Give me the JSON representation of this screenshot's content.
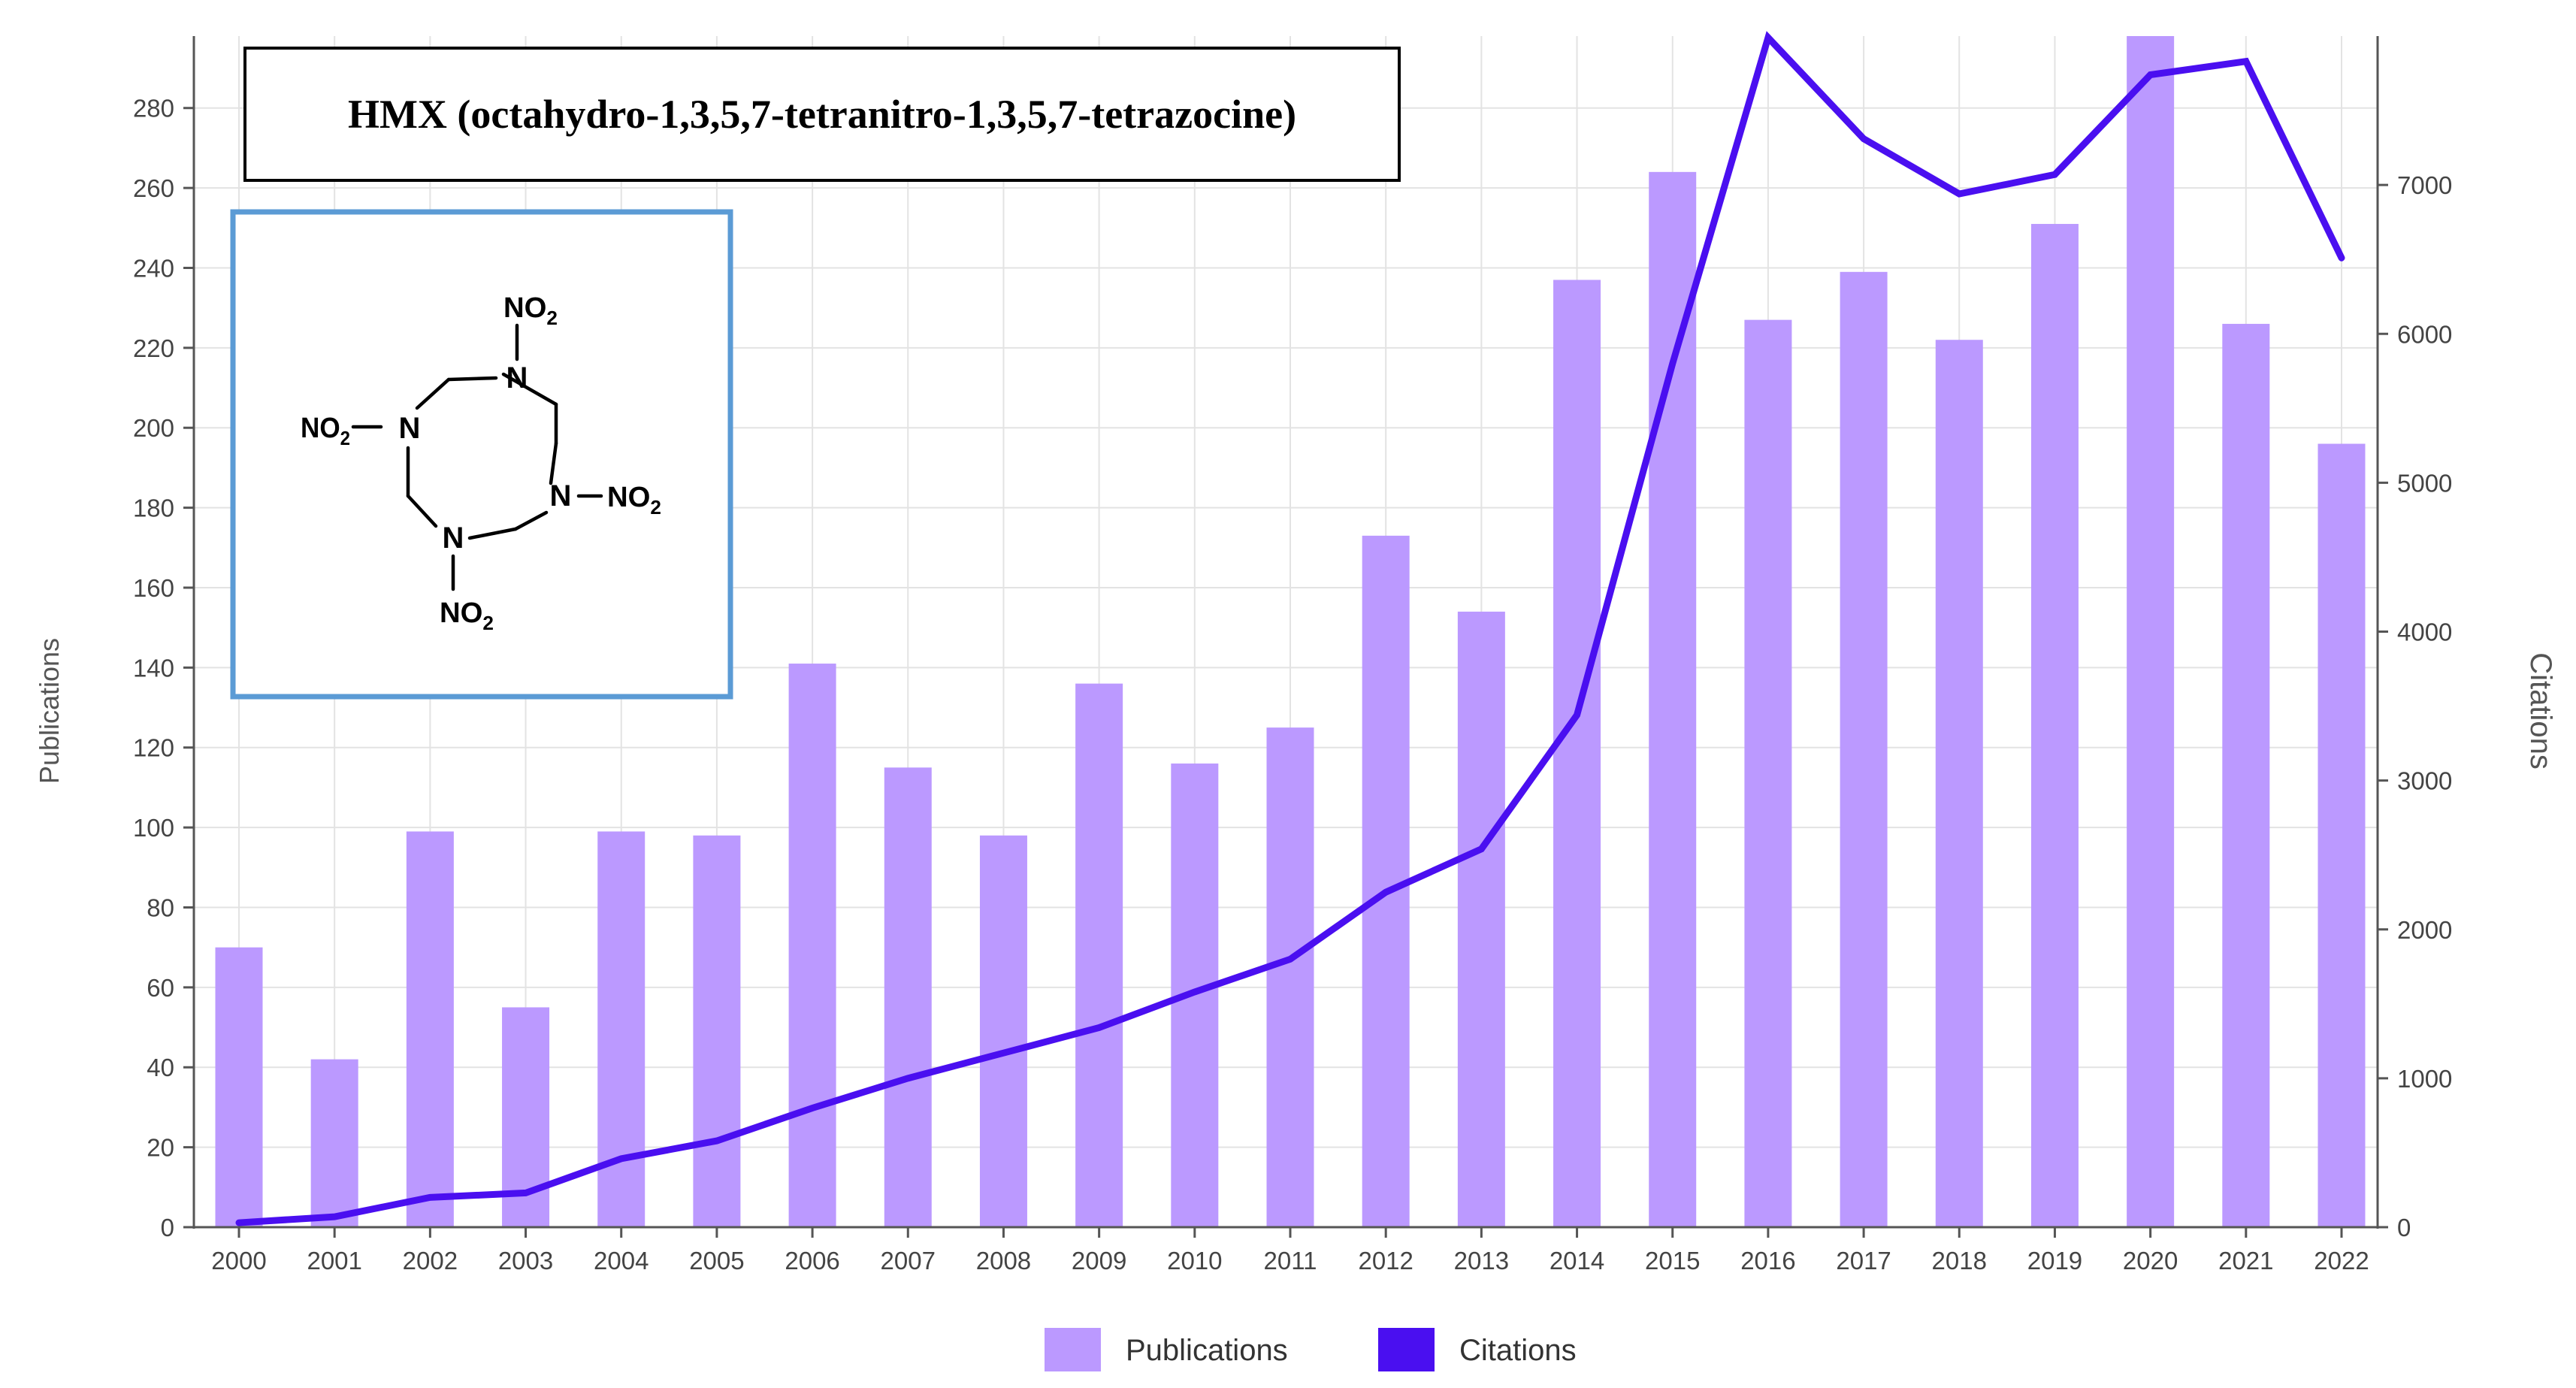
{
  "chart_data": {
    "type": "bar+line",
    "title": "HMX (octahydro-1,3,5,7-tetranitro-1,3,5,7-tetrazocine)",
    "categories": [
      "2000",
      "2001",
      "2002",
      "2003",
      "2004",
      "2005",
      "2006",
      "2007",
      "2008",
      "2009",
      "2010",
      "2011",
      "2012",
      "2013",
      "2014",
      "2015",
      "2016",
      "2017",
      "2018",
      "2019",
      "2020",
      "2021",
      "2022"
    ],
    "series": [
      {
        "name": "Publications",
        "type": "bar",
        "axis": "left",
        "color": "#bb99ff",
        "values": [
          70,
          42,
          99,
          55,
          99,
          98,
          141,
          115,
          98,
          136,
          116,
          125,
          173,
          154,
          237,
          264,
          227,
          239,
          222,
          251,
          298,
          226,
          196
        ]
      },
      {
        "name": "Citations",
        "type": "line",
        "axis": "right",
        "color": "#4a0ff0",
        "values": [
          30,
          70,
          200,
          230,
          460,
          580,
          800,
          1000,
          1170,
          1340,
          1580,
          1800,
          2250,
          2540,
          3440,
          5800,
          7990,
          7310,
          6940,
          7070,
          7740,
          7830,
          6510
        ]
      }
    ],
    "ylabel": "Publications",
    "ylabel_right": "Citations",
    "ylim": [
      0,
      298
    ],
    "ylim_right": [
      0,
      8000
    ],
    "yticks": [
      0,
      20,
      40,
      60,
      80,
      100,
      120,
      140,
      160,
      180,
      200,
      220,
      240,
      260,
      280
    ],
    "yticks_right": [
      0,
      1000,
      2000,
      3000,
      4000,
      5000,
      6000,
      7000
    ],
    "grid": true,
    "legend": "bottom-center",
    "inset": {
      "caption": "HMX structure",
      "atoms": [
        "N",
        "N",
        "N",
        "N"
      ],
      "nitro_groups": [
        "NO2",
        "NO2",
        "NO2",
        "NO2"
      ]
    }
  }
}
